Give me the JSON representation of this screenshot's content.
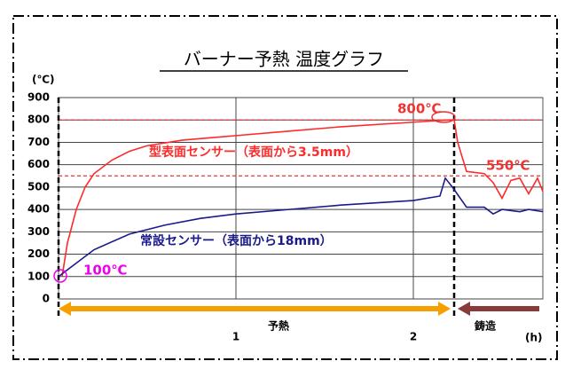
{
  "chart_data": {
    "type": "line",
    "title": "バーナー予熱 温度グラフ",
    "y_unit": "(℃)",
    "x_unit": "(h)",
    "xlim": [
      0,
      2.73
    ],
    "xticks": [
      1,
      2
    ],
    "ylim": [
      0,
      900
    ],
    "yticks": [
      0,
      100,
      200,
      300,
      400,
      500,
      600,
      700,
      800,
      900
    ],
    "grid": true,
    "series": [
      {
        "name": "型表面センサー（表面から3.5mm）",
        "color": "#ff2a2a",
        "x": [
          0.02,
          0.05,
          0.1,
          0.15,
          0.2,
          0.3,
          0.4,
          0.5,
          0.7,
          1,
          1.3,
          1.6,
          2.0,
          2.2,
          2.23,
          2.25,
          2.3,
          2.4,
          2.45,
          2.5,
          2.55,
          2.6,
          2.65,
          2.7,
          2.73
        ],
        "values": [
          100,
          250,
          400,
          500,
          560,
          620,
          660,
          685,
          710,
          730,
          750,
          770,
          790,
          800,
          800,
          700,
          570,
          560,
          520,
          450,
          530,
          540,
          470,
          540,
          480
        ]
      },
      {
        "name": "常設センサー（表面から18mm）",
        "color": "#1a1a8c",
        "x": [
          0,
          0.1,
          0.2,
          0.4,
          0.6,
          0.8,
          1,
          1.3,
          1.6,
          2.0,
          2.15,
          2.18,
          2.22,
          2.3,
          2.4,
          2.45,
          2.5,
          2.6,
          2.65,
          2.73
        ],
        "values": [
          100,
          160,
          220,
          290,
          330,
          360,
          380,
          400,
          420,
          440,
          460,
          540,
          500,
          410,
          410,
          380,
          400,
          390,
          400,
          390
        ]
      }
    ],
    "reference_lines": [
      800,
      550
    ],
    "annotations": [
      "800℃",
      "550℃",
      "100℃"
    ],
    "phase_boundary": 2.23,
    "phases": [
      "予熱",
      "鋳造"
    ]
  }
}
